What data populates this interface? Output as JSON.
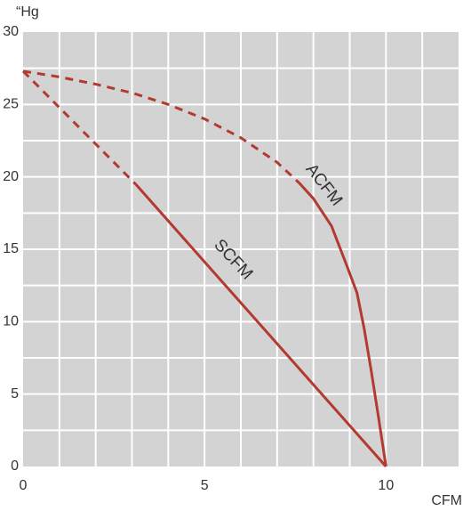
{
  "chart_data": {
    "type": "line",
    "y_label": "“Hg",
    "x_label": "CFM",
    "xlim": [
      0,
      12
    ],
    "ylim": [
      0,
      30
    ],
    "xticks": [
      0,
      5,
      10
    ],
    "yticks": [
      0,
      5,
      10,
      15,
      20,
      25,
      30
    ],
    "xgrid": [
      1,
      2,
      3,
      4,
      5,
      6,
      7,
      8,
      9,
      10,
      11
    ],
    "ygrid": [
      2.5,
      5,
      7.5,
      10,
      12.5,
      15,
      17.5,
      20,
      22.5,
      25,
      27.5
    ],
    "background": "#d3d3d3",
    "grid_color": "#ffffff",
    "series": [
      {
        "name": "SCFM",
        "color": "#b23a30",
        "segments": [
          {
            "style": "dashed",
            "x": [
              0,
              3.1
            ],
            "values": [
              27.3,
              19.5
            ]
          },
          {
            "style": "solid",
            "x": [
              3.1,
              10
            ],
            "values": [
              19.5,
              0
            ]
          }
        ]
      },
      {
        "name": "ACFM",
        "color": "#b23a30",
        "segments": [
          {
            "style": "dashed",
            "x": [
              0,
              1,
              2,
              3,
              4,
              5,
              6,
              7,
              7.6
            ],
            "values": [
              27.3,
              26.9,
              26.4,
              25.8,
              25,
              24,
              22.7,
              21,
              19.6
            ]
          },
          {
            "style": "solid",
            "x": [
              7.6,
              8,
              8.5,
              8.9,
              9.2,
              9.4,
              9.6,
              9.8,
              10
            ],
            "values": [
              19.6,
              18.5,
              16.6,
              14,
              12,
              9.5,
              6.5,
              3.3,
              0
            ]
          }
        ]
      }
    ]
  }
}
